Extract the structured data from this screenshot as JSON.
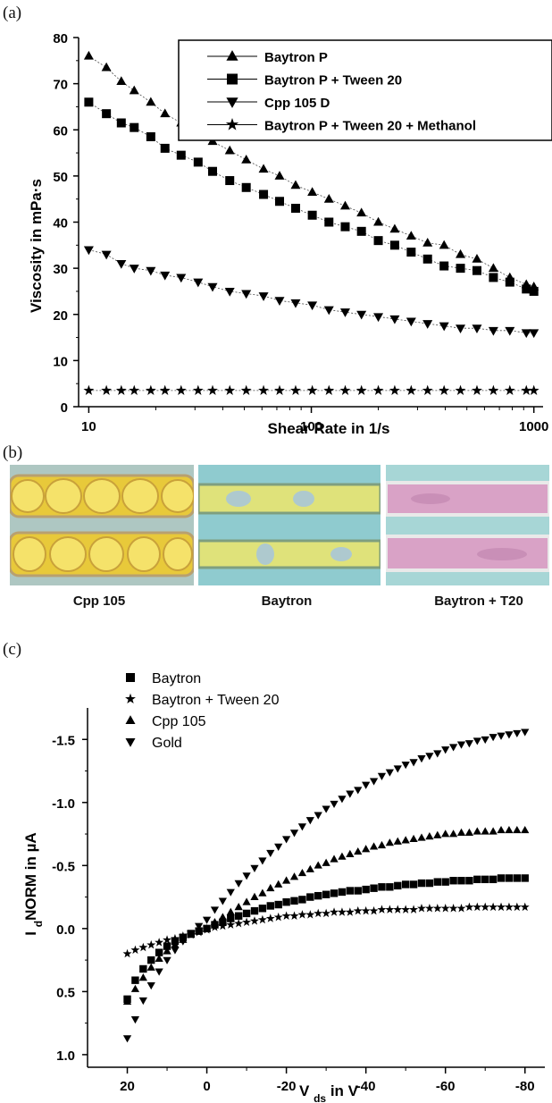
{
  "panel_labels": {
    "a": "(a)",
    "b": "(b)",
    "c": "(c)"
  },
  "photo_captions": [
    "Cpp 105",
    "Baytron",
    "Baytron + T20"
  ],
  "chart_data": [
    {
      "type": "line",
      "x_scale": "log",
      "xlabel": "Shear Rate in 1/s",
      "ylabel": "Viscosity in mPa·s",
      "xlim": [
        9,
        1100
      ],
      "ylim": [
        0,
        80
      ],
      "x_ticks": [
        10,
        100,
        1000
      ],
      "x_tick_labels": [
        "10",
        "100",
        "1000"
      ],
      "y_ticks": [
        0,
        10,
        20,
        30,
        40,
        50,
        60,
        70,
        80
      ],
      "y_tick_labels": [
        "0",
        "10",
        "20",
        "30",
        "40",
        "50",
        "60",
        "70",
        "80"
      ],
      "legend": "top-right",
      "x": [
        10,
        12,
        14,
        16,
        19,
        22,
        26,
        31,
        36,
        43,
        51,
        61,
        72,
        85,
        101,
        120,
        142,
        168,
        200,
        237,
        281,
        333,
        395,
        468,
        555,
        658,
        780,
        925,
        1000
      ],
      "series": [
        {
          "name": "Baytron P",
          "marker": "triangle-up",
          "values": [
            76,
            73.5,
            70.5,
            68.5,
            66,
            63.5,
            61.5,
            59,
            57.5,
            55.5,
            53.5,
            51.5,
            50,
            48,
            46.5,
            45,
            43.5,
            42,
            40,
            38.5,
            37,
            35.5,
            35,
            33,
            32,
            30,
            28,
            26.5,
            26
          ]
        },
        {
          "name": "Baytron P + Tween 20",
          "marker": "square",
          "values": [
            66,
            63.5,
            61.5,
            60.5,
            58.5,
            56,
            54.5,
            53,
            51,
            49,
            47.5,
            46,
            44.5,
            43,
            41.5,
            40,
            39,
            38,
            36,
            35,
            33.5,
            32,
            30.5,
            30,
            29.5,
            28,
            27,
            25.5,
            25
          ]
        },
        {
          "name": "Cpp 105 D",
          "marker": "triangle-down",
          "values": [
            34,
            33,
            31,
            30,
            29.5,
            28.5,
            28,
            27,
            26,
            25,
            24.5,
            24,
            23,
            22.5,
            22,
            21,
            20.5,
            20,
            19.5,
            19,
            18.5,
            18,
            17.5,
            17,
            17,
            16.5,
            16.5,
            16,
            16
          ]
        },
        {
          "name": "Baytron P + Tween 20 + Methanol",
          "marker": "star",
          "values": [
            3.5,
            3.5,
            3.5,
            3.5,
            3.5,
            3.5,
            3.5,
            3.5,
            3.5,
            3.5,
            3.5,
            3.5,
            3.5,
            3.5,
            3.5,
            3.5,
            3.5,
            3.5,
            3.5,
            3.5,
            3.5,
            3.5,
            3.5,
            3.5,
            3.5,
            3.5,
            3.5,
            3.5,
            3.5
          ]
        }
      ]
    },
    {
      "type": "scatter",
      "xlabel": "V_ds in V",
      "ylabel": "I_dNORM in µA",
      "xlim": [
        30,
        -85
      ],
      "ylim": [
        -1.75,
        1.1
      ],
      "x_ticks": [
        20,
        0,
        -20,
        -40,
        -60,
        -80
      ],
      "x_tick_labels": [
        "20",
        "0",
        "-20",
        "-40",
        "-60",
        "-80"
      ],
      "y_ticks": [
        -1.5,
        -1.0,
        -0.5,
        0.0,
        0.5,
        1.0
      ],
      "y_tick_labels": [
        "-1.5",
        "-1.0",
        "-0.5",
        "0.0",
        "0.5",
        "1.0"
      ],
      "legend": "top-left",
      "x": [
        20,
        18,
        16,
        14,
        12,
        10,
        8,
        6,
        4,
        2,
        0,
        -2,
        -4,
        -6,
        -8,
        -10,
        -12,
        -14,
        -16,
        -18,
        -20,
        -22,
        -24,
        -26,
        -28,
        -30,
        -32,
        -34,
        -36,
        -38,
        -40,
        -42,
        -44,
        -46,
        -48,
        -50,
        -52,
        -54,
        -56,
        -58,
        -60,
        -62,
        -64,
        -66,
        -68,
        -70,
        -72,
        -74,
        -76,
        -78,
        -80
      ],
      "series": [
        {
          "name": "Baytron",
          "marker": "square",
          "values": [
            0.56,
            0.41,
            0.32,
            0.25,
            0.19,
            0.14,
            0.1,
            0.07,
            0.04,
            0.02,
            0,
            -0.03,
            -0.05,
            -0.08,
            -0.1,
            -0.12,
            -0.14,
            -0.16,
            -0.18,
            -0.19,
            -0.21,
            -0.22,
            -0.23,
            -0.25,
            -0.26,
            -0.27,
            -0.28,
            -0.29,
            -0.3,
            -0.3,
            -0.31,
            -0.32,
            -0.33,
            -0.33,
            -0.34,
            -0.35,
            -0.35,
            -0.36,
            -0.36,
            -0.37,
            -0.37,
            -0.38,
            -0.38,
            -0.38,
            -0.39,
            -0.39,
            -0.39,
            -0.4,
            -0.4,
            -0.4,
            -0.4
          ]
        },
        {
          "name": "Baytron + Tween 20",
          "marker": "star",
          "values": [
            0.2,
            0.17,
            0.15,
            0.13,
            0.11,
            0.09,
            0.08,
            0.06,
            0.05,
            0.03,
            0.01,
            -0.01,
            -0.02,
            -0.03,
            -0.04,
            -0.05,
            -0.06,
            -0.07,
            -0.08,
            -0.09,
            -0.1,
            -0.1,
            -0.11,
            -0.11,
            -0.12,
            -0.12,
            -0.13,
            -0.13,
            -0.13,
            -0.14,
            -0.14,
            -0.14,
            -0.15,
            -0.15,
            -0.15,
            -0.15,
            -0.15,
            -0.16,
            -0.16,
            -0.16,
            -0.16,
            -0.16,
            -0.16,
            -0.17,
            -0.17,
            -0.17,
            -0.17,
            -0.17,
            -0.17,
            -0.17,
            -0.17
          ]
        },
        {
          "name": "Cpp 105",
          "marker": "triangle-up",
          "values": [
            0.58,
            0.48,
            0.39,
            0.31,
            0.24,
            0.18,
            0.13,
            0.09,
            0.05,
            0.02,
            0,
            -0.05,
            -0.09,
            -0.13,
            -0.17,
            -0.21,
            -0.25,
            -0.28,
            -0.32,
            -0.35,
            -0.38,
            -0.41,
            -0.44,
            -0.47,
            -0.5,
            -0.52,
            -0.55,
            -0.57,
            -0.59,
            -0.61,
            -0.63,
            -0.65,
            -0.66,
            -0.68,
            -0.69,
            -0.7,
            -0.71,
            -0.72,
            -0.73,
            -0.74,
            -0.75,
            -0.75,
            -0.76,
            -0.76,
            -0.77,
            -0.77,
            -0.77,
            -0.78,
            -0.78,
            -0.78,
            -0.78
          ]
        },
        {
          "name": "Gold",
          "marker": "triangle-down",
          "values": [
            0.87,
            0.72,
            0.57,
            0.45,
            0.34,
            0.25,
            0.17,
            0.1,
            0.04,
            -0.02,
            -0.07,
            -0.15,
            -0.22,
            -0.29,
            -0.36,
            -0.42,
            -0.48,
            -0.54,
            -0.6,
            -0.65,
            -0.71,
            -0.76,
            -0.81,
            -0.86,
            -0.9,
            -0.95,
            -0.99,
            -1.03,
            -1.07,
            -1.1,
            -1.14,
            -1.17,
            -1.21,
            -1.24,
            -1.27,
            -1.3,
            -1.32,
            -1.35,
            -1.37,
            -1.39,
            -1.42,
            -1.44,
            -1.46,
            -1.47,
            -1.49,
            -1.5,
            -1.52,
            -1.53,
            -1.54,
            -1.55,
            -1.56
          ]
        }
      ]
    }
  ]
}
